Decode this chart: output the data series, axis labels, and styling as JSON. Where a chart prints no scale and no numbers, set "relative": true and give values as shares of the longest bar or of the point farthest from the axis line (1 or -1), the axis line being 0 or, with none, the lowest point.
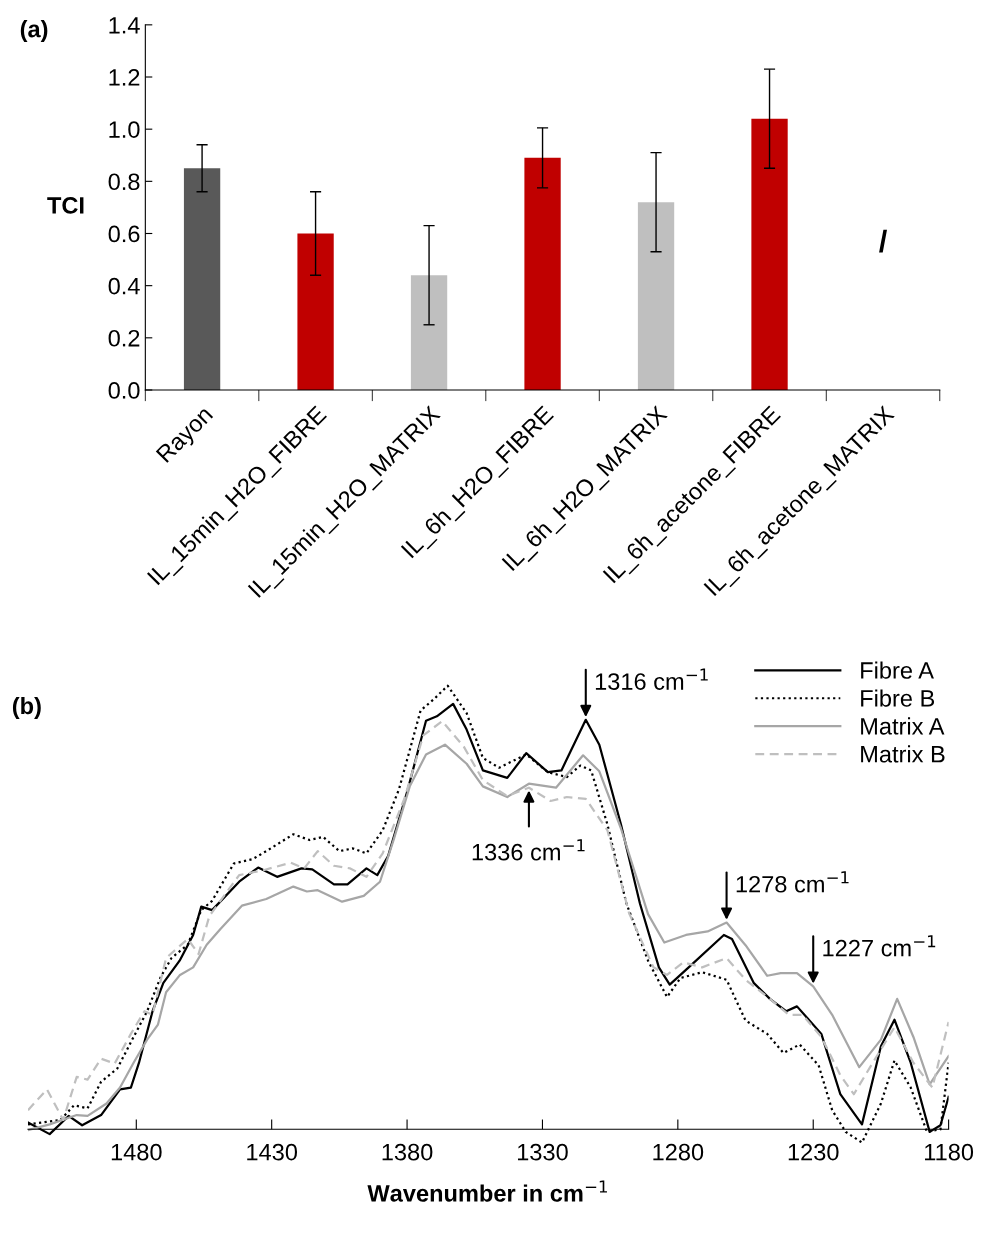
{
  "chart_data": [
    {
      "type": "bar",
      "title": "(a)",
      "ylabel": "TCI",
      "categories": [
        "Rayon",
        "IL_15min_H2O_FIBRE",
        "IL_15min_H2O_MATRIX",
        "IL_6h_H2O_FIBRE",
        "IL_6h_H2O_MATRIX",
        "IL_6h_acetone_FIBRE",
        "IL_6h_acetone_MATRIX"
      ],
      "values": [
        0.85,
        0.6,
        0.44,
        0.89,
        0.72,
        1.04,
        null
      ],
      "errors": [
        0.09,
        0.16,
        0.19,
        0.115,
        0.19,
        0.19,
        null
      ],
      "colors": [
        "#595959",
        "#c00000",
        "#bfbfbf",
        "#c00000",
        "#bfbfbf",
        "#c00000",
        "#c00000"
      ],
      "ylim": [
        0,
        1.4
      ],
      "yticks": [
        {
          "value": 0,
          "label": "0.0"
        },
        {
          "value": 0.2,
          "label": "0.2"
        },
        {
          "value": 0.4,
          "label": "0.4"
        },
        {
          "value": 0.6,
          "label": "0.6"
        },
        {
          "value": 0.8,
          "label": "0.8"
        },
        {
          "value": 1.0,
          "label": "1.0"
        },
        {
          "value": 1.2,
          "label": "1.2"
        },
        {
          "value": 1.4,
          "label": "1.4"
        }
      ],
      "annotations": [
        "/"
      ],
      "grid": false
    },
    {
      "type": "line",
      "title": "(b)",
      "xlabel": "Wavenumber in cm$^{−1}$",
      "relative": true,
      "legend": "top right",
      "grid": false,
      "xlim": [
        1520,
        1180
      ],
      "xticks": [
        1480,
        1430,
        1380,
        1330,
        1280,
        1230,
        1180
      ],
      "tick_labels": "x",
      "series": [
        {
          "name": "Fibre A",
          "color": "#000000",
          "line_style": "solid",
          "x": [
            1520,
            1512,
            1505,
            1500,
            1493,
            1486,
            1482,
            1479,
            1474,
            1470,
            1464,
            1459,
            1456,
            1452,
            1442,
            1435,
            1428,
            1419,
            1415,
            1407,
            1402,
            1395,
            1391,
            1387,
            1380,
            1373,
            1369,
            1363,
            1358,
            1352,
            1343,
            1336,
            1328,
            1323,
            1314,
            1309,
            1301,
            1294,
            1287,
            1283,
            1276,
            1263,
            1260,
            1252,
            1246,
            1240,
            1236,
            1227,
            1220,
            1212,
            1205,
            1200,
            1194,
            1187,
            1183,
            1180
          ],
          "values": [
            0.015,
            -0.011,
            0.03,
            0.009,
            0.032,
            0.09,
            0.094,
            0.15,
            0.266,
            0.33,
            0.38,
            0.438,
            0.502,
            0.494,
            0.558,
            0.59,
            0.569,
            0.588,
            0.586,
            0.552,
            0.552,
            0.588,
            0.573,
            0.616,
            0.76,
            0.921,
            0.931,
            0.959,
            0.901,
            0.809,
            0.792,
            0.848,
            0.805,
            0.809,
            0.923,
            0.867,
            0.687,
            0.509,
            0.365,
            0.326,
            0.365,
            0.438,
            0.429,
            0.33,
            0.294,
            0.266,
            0.277,
            0.215,
            0.079,
            0.011,
            0.187,
            0.247,
            0.15,
            -0.006,
            0.009,
            0.073
          ]
        },
        {
          "name": "Fibre B",
          "color": "#000000",
          "line_style": "dotted",
          "x": [
            1520,
            1508,
            1503,
            1498,
            1493,
            1487,
            1481,
            1476,
            1471,
            1467,
            1461,
            1456,
            1452,
            1444,
            1437,
            1432,
            1422,
            1416,
            1411,
            1405,
            1400,
            1395,
            1389,
            1383,
            1375,
            1370,
            1365,
            1358,
            1352,
            1346,
            1336,
            1328,
            1321,
            1316,
            1312,
            1306,
            1299,
            1291,
            1284,
            1279,
            1271,
            1262,
            1255,
            1247,
            1241,
            1235,
            1228,
            1223,
            1218,
            1212,
            1205,
            1200,
            1194,
            1188,
            1183,
            1180
          ],
          "values": [
            0.011,
            0.021,
            0.054,
            0.047,
            0.107,
            0.137,
            0.208,
            0.266,
            0.343,
            0.386,
            0.416,
            0.494,
            0.515,
            0.599,
            0.609,
            0.627,
            0.665,
            0.652,
            0.659,
            0.627,
            0.633,
            0.622,
            0.674,
            0.766,
            0.944,
            0.97,
            1.0,
            0.938,
            0.837,
            0.815,
            0.845,
            0.805,
            0.794,
            0.82,
            0.809,
            0.687,
            0.509,
            0.38,
            0.298,
            0.341,
            0.354,
            0.337,
            0.245,
            0.215,
            0.172,
            0.191,
            0.144,
            0.043,
            -0.006,
            -0.03,
            0.058,
            0.155,
            0.094,
            -0.006,
            0,
            0.15
          ]
        },
        {
          "name": "Matrix A",
          "color": "#a6a6a6",
          "line_style": "solid",
          "x": [
            1520,
            1512,
            1502,
            1498,
            1491,
            1486,
            1481,
            1476,
            1472,
            1469,
            1464,
            1459,
            1454,
            1449,
            1441,
            1432,
            1422,
            1417,
            1413,
            1404,
            1396,
            1390,
            1385,
            1379,
            1373,
            1366,
            1358,
            1352,
            1343,
            1335,
            1325,
            1315,
            1309,
            1301,
            1291,
            1285,
            1277,
            1269,
            1262,
            1255,
            1247,
            1242,
            1236,
            1230,
            1223,
            1213,
            1205,
            1199,
            1193,
            1187,
            1180
          ],
          "values": [
            -0.002,
            0.011,
            0.032,
            0.03,
            0.058,
            0.094,
            0.15,
            0.202,
            0.236,
            0.309,
            0.347,
            0.365,
            0.416,
            0.451,
            0.504,
            0.519,
            0.547,
            0.536,
            0.539,
            0.513,
            0.526,
            0.558,
            0.652,
            0.773,
            0.845,
            0.867,
            0.824,
            0.773,
            0.749,
            0.779,
            0.77,
            0.843,
            0.807,
            0.678,
            0.485,
            0.421,
            0.438,
            0.446,
            0.466,
            0.415,
            0.346,
            0.352,
            0.352,
            0.322,
            0.258,
            0.14,
            0.202,
            0.294,
            0.208,
            0.101,
            0.165
          ]
        },
        {
          "name": "Matrix B",
          "color": "#bfbfbf",
          "line_style": "dashed",
          "x": [
            1520,
            1513,
            1507,
            1502,
            1498,
            1493,
            1488,
            1482,
            1477,
            1474,
            1469,
            1461,
            1457,
            1453,
            1442,
            1433,
            1423,
            1418,
            1413,
            1407,
            1401,
            1395,
            1389,
            1381,
            1374,
            1367,
            1359,
            1352,
            1343,
            1335,
            1327,
            1321,
            1314,
            1306,
            1298,
            1289,
            1284,
            1278,
            1271,
            1262,
            1255,
            1246,
            1239,
            1234,
            1227,
            1220,
            1215,
            1208,
            1200,
            1193,
            1186,
            1180
          ],
          "values": [
            0.043,
            0.09,
            0.021,
            0.118,
            0.112,
            0.159,
            0.148,
            0.215,
            0.266,
            0.258,
            0.386,
            0.429,
            0.395,
            0.481,
            0.573,
            0.584,
            0.601,
            0.588,
            0.627,
            0.594,
            0.588,
            0.569,
            0.622,
            0.745,
            0.888,
            0.92,
            0.862,
            0.787,
            0.751,
            0.77,
            0.74,
            0.749,
            0.745,
            0.674,
            0.487,
            0.365,
            0.348,
            0.376,
            0.365,
            0.386,
            0.337,
            0.294,
            0.258,
            0.258,
            0.208,
            0.122,
            0.079,
            0.15,
            0.23,
            0.15,
            0.094,
            0.242
          ]
        }
      ],
      "annotations": [
        {
          "text": "1316 cm$^{−1}$",
          "x": 1314,
          "y": 0.923
        },
        {
          "text": "1336 cm$^{−1}$",
          "x": 1335,
          "y": 0.77
        },
        {
          "text": "1278 cm$^{−1}$",
          "x": 1262,
          "y": 0.466
        },
        {
          "text": "1227 cm$^{−1}$",
          "x": 1230,
          "y": 0.322
        }
      ]
    }
  ]
}
